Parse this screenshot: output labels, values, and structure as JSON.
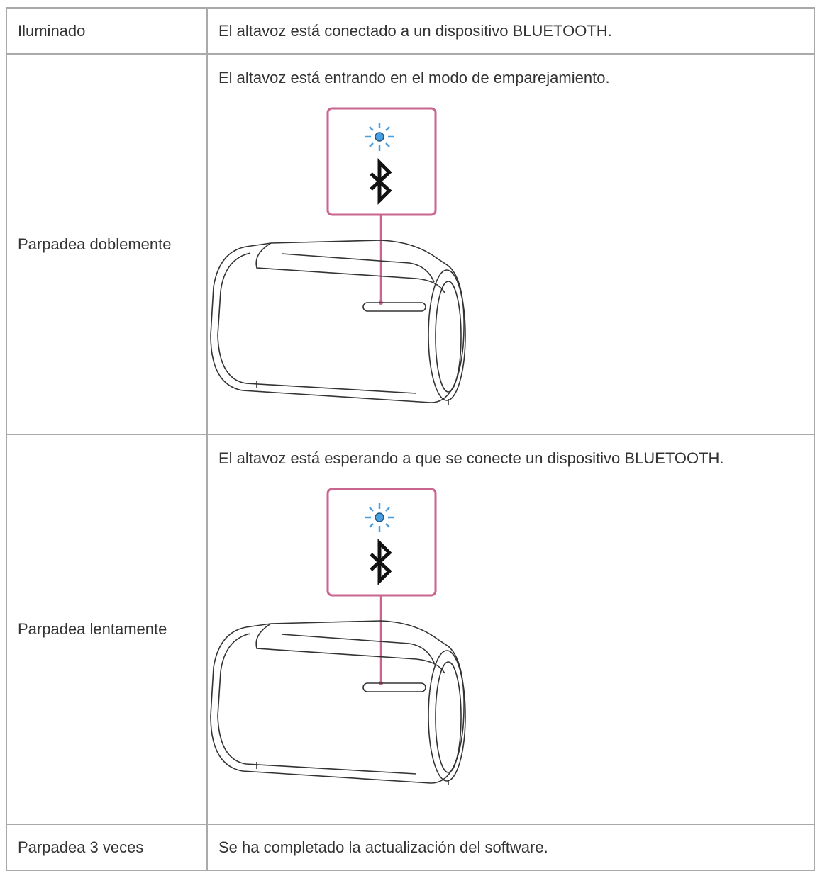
{
  "table": {
    "rows": [
      [
        "Iluminado",
        "El altavoz está conectado a un dispositivo BLUETOOTH."
      ],
      [
        "Parpadea doblemente",
        "El altavoz está entrando en el modo de emparejamiento."
      ],
      [
        "Parpadea lentamente",
        "El altavoz está esperando a que se conecte un dispositivo BLUETOOTH."
      ],
      [
        "Parpadea 3 veces",
        "Se ha completado la actualización del software."
      ]
    ]
  }
}
